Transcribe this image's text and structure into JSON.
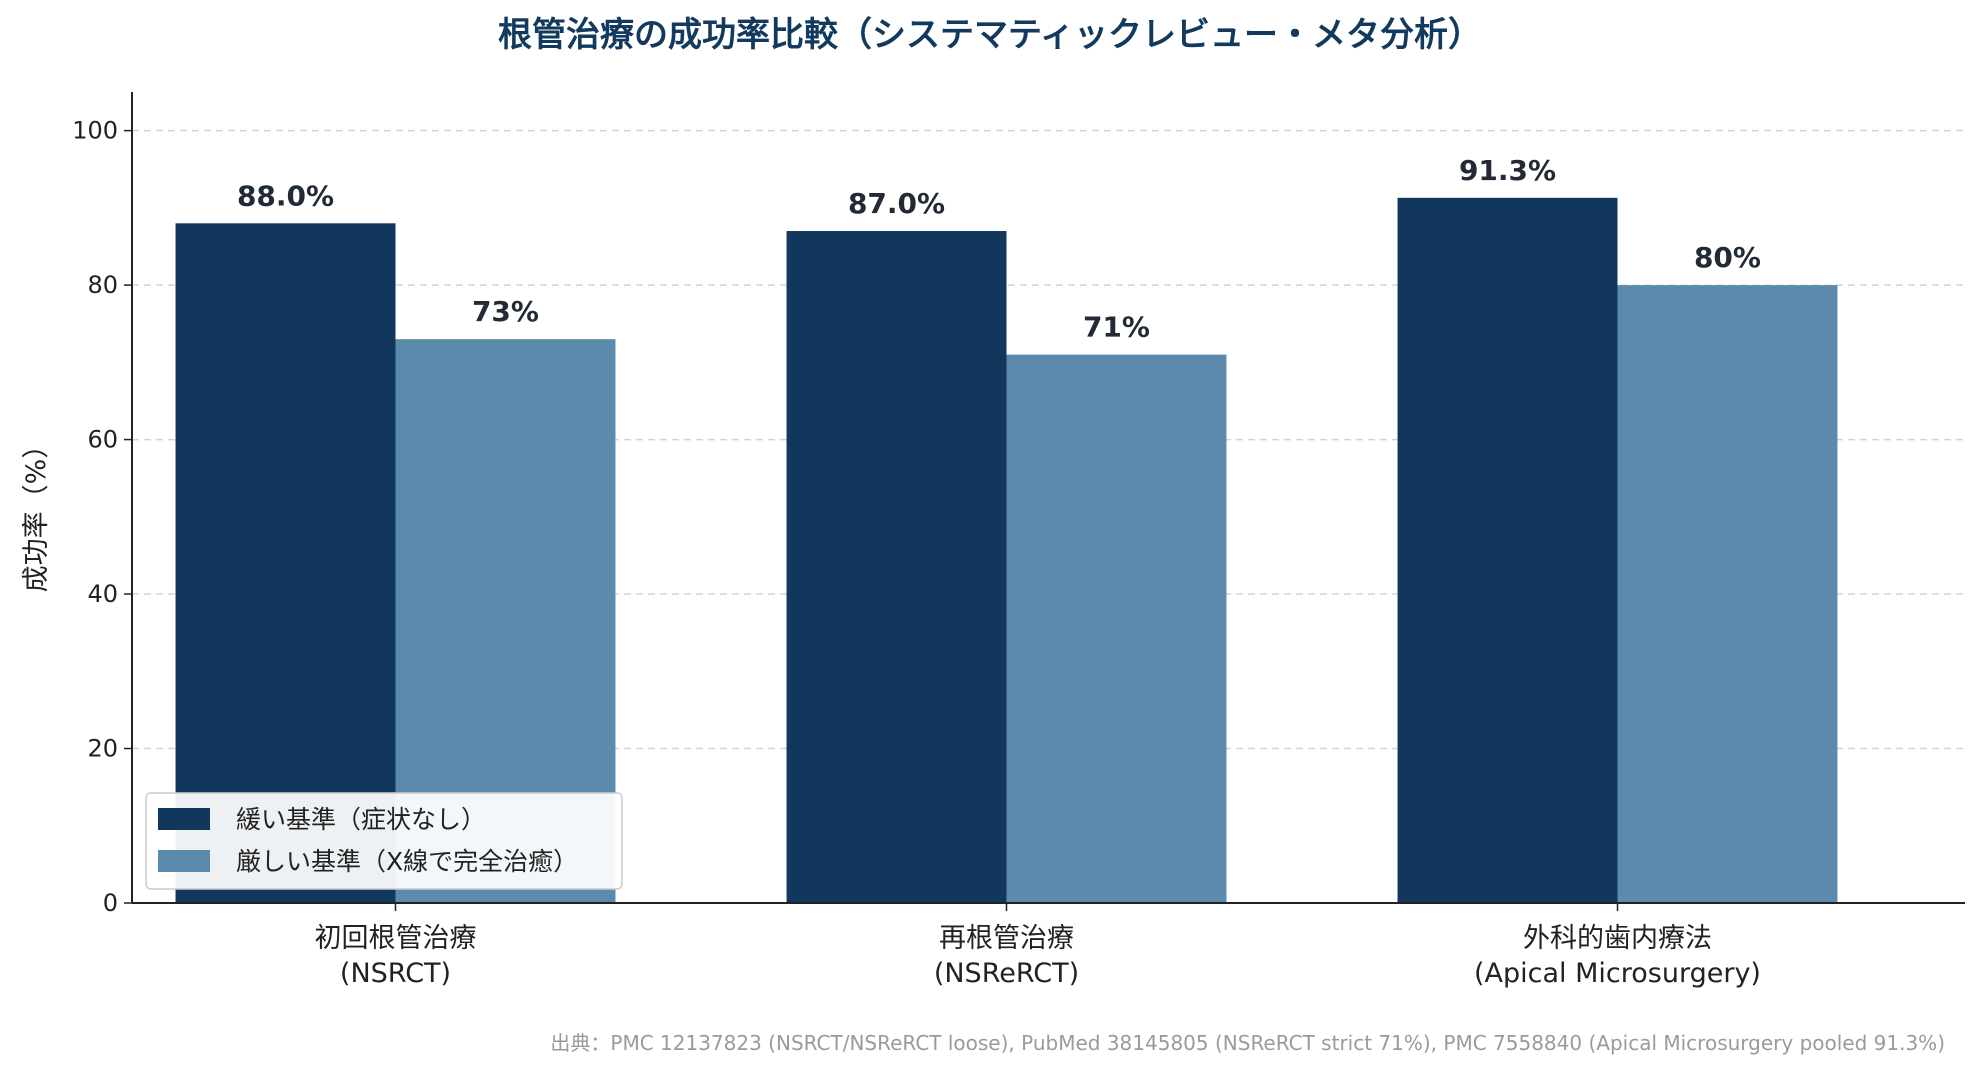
{
  "chart_data": {
    "type": "bar",
    "title": "根管治療の成功率比較（システマティックレビュー・メタ分析）",
    "ylabel": "成功率（%）",
    "ylim": [
      0,
      105
    ],
    "yticks": [
      0,
      20,
      40,
      60,
      80,
      100
    ],
    "grid": true,
    "legend_position": "lower-left",
    "categories": [
      [
        "初回根管治療",
        "(NSRCT)"
      ],
      [
        "再根管治療",
        "(NSReRCT)"
      ],
      [
        "外科的歯内療法",
        "(Apical Microsurgery)"
      ]
    ],
    "series": [
      {
        "name": "緩い基準（症状なし）",
        "color": "#12375c",
        "values": [
          88.0,
          87.0,
          91.3
        ],
        "labels": [
          "88.0%",
          "87.0%",
          "91.3%"
        ]
      },
      {
        "name": "厳しい基準（X線で完全治癒）",
        "color": "#5b8aad",
        "values": [
          73,
          71,
          80
        ],
        "labels": [
          "73%",
          "71%",
          "80%"
        ]
      }
    ],
    "source": "出典：PMC 12137823 (NSRCT/NSReRCT loose), PubMed 38145805 (NSReRCT strict 71%), PMC 7558840 (Apical Microsurgery pooled 91.3%)"
  }
}
